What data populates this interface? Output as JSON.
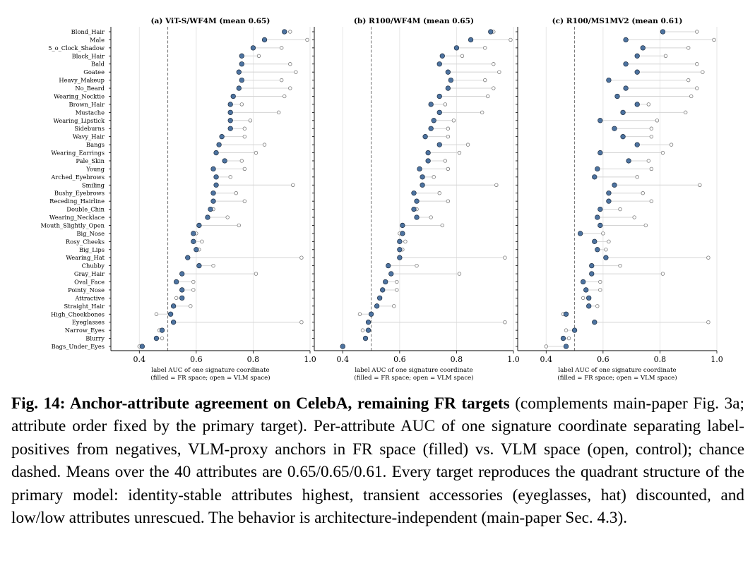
{
  "chart_data": [
    {
      "type": "scatter",
      "title": "(a) ViT-S/WF4M (mean 0.65)",
      "xlabel": "label AUC of one signature coordinate",
      "xlabel_note": "(filled = FR space; open = VLM space)",
      "xlim": [
        0.3,
        1.0
      ],
      "xticks": [
        "0.4",
        "0.6",
        "0.8",
        "1.0"
      ],
      "chance": 0.5,
      "grid": true,
      "fr": [
        0.91,
        0.84,
        0.8,
        0.76,
        0.76,
        0.75,
        0.76,
        0.75,
        0.73,
        0.72,
        0.72,
        0.72,
        0.72,
        0.69,
        0.68,
        0.67,
        0.7,
        0.66,
        0.67,
        0.67,
        0.66,
        0.66,
        0.65,
        0.64,
        0.61,
        0.59,
        0.59,
        0.6,
        0.57,
        0.61,
        0.55,
        0.53,
        0.55,
        0.55,
        0.52,
        0.51,
        0.52,
        0.48,
        0.46,
        0.41
      ],
      "vlm": [
        0.93,
        0.99,
        0.9,
        0.82,
        0.93,
        0.95,
        0.9,
        0.93,
        0.91,
        0.76,
        0.89,
        0.79,
        0.77,
        0.77,
        0.84,
        0.81,
        0.76,
        0.77,
        0.72,
        0.94,
        0.74,
        0.77,
        0.66,
        0.71,
        0.75,
        0.6,
        0.62,
        0.61,
        0.97,
        0.66,
        0.81,
        0.59,
        0.59,
        0.53,
        0.58,
        0.46,
        0.97,
        0.47,
        0.48,
        0.4
      ]
    },
    {
      "type": "scatter",
      "title": "(b) R100/WF4M (mean 0.65)",
      "xlabel": "label AUC of one signature coordinate",
      "xlabel_note": "(filled = FR space; open = VLM space)",
      "xlim": [
        0.3,
        1.0
      ],
      "xticks": [
        "0.4",
        "0.6",
        "0.8",
        "1.0"
      ],
      "chance": 0.5,
      "grid": true,
      "fr": [
        0.92,
        0.85,
        0.8,
        0.75,
        0.74,
        0.77,
        0.78,
        0.77,
        0.74,
        0.71,
        0.74,
        0.72,
        0.71,
        0.69,
        0.74,
        0.7,
        0.7,
        0.67,
        0.68,
        0.68,
        0.65,
        0.66,
        0.65,
        0.66,
        0.61,
        0.61,
        0.6,
        0.6,
        0.6,
        0.56,
        0.57,
        0.55,
        0.54,
        0.53,
        0.52,
        0.5,
        0.49,
        0.49,
        0.48,
        0.4
      ],
      "vlm": [
        0.93,
        0.99,
        0.9,
        0.82,
        0.93,
        0.95,
        0.9,
        0.93,
        0.91,
        0.76,
        0.89,
        0.79,
        0.77,
        0.77,
        0.84,
        0.81,
        0.76,
        0.77,
        0.72,
        0.94,
        0.74,
        0.77,
        0.66,
        0.71,
        0.75,
        0.6,
        0.62,
        0.61,
        0.97,
        0.66,
        0.81,
        0.59,
        0.59,
        0.53,
        0.58,
        0.46,
        0.97,
        0.47,
        0.48,
        0.4
      ]
    },
    {
      "type": "scatter",
      "title": "(c) R100/MS1MV2 (mean 0.61)",
      "xlabel": "label AUC of one signature coordinate",
      "xlabel_note": "(filled = FR space; open = VLM space)",
      "xlim": [
        0.3,
        1.0
      ],
      "xticks": [
        "0.4",
        "0.6",
        "0.8",
        "1.0"
      ],
      "chance": 0.5,
      "grid": true,
      "fr": [
        0.81,
        0.68,
        0.74,
        0.72,
        0.68,
        0.72,
        0.62,
        0.68,
        0.65,
        0.72,
        0.67,
        0.59,
        0.64,
        0.67,
        0.72,
        0.59,
        0.69,
        0.58,
        0.57,
        0.64,
        0.62,
        0.62,
        0.59,
        0.58,
        0.59,
        0.52,
        0.57,
        0.58,
        0.61,
        0.56,
        0.56,
        0.53,
        0.54,
        0.55,
        0.55,
        0.47,
        0.57,
        0.5,
        0.46,
        0.47
      ],
      "vlm": [
        0.93,
        0.99,
        0.9,
        0.82,
        0.93,
        0.95,
        0.9,
        0.93,
        0.91,
        0.76,
        0.89,
        0.79,
        0.77,
        0.77,
        0.84,
        0.81,
        0.76,
        0.77,
        0.72,
        0.94,
        0.74,
        0.77,
        0.66,
        0.71,
        0.75,
        0.6,
        0.62,
        0.61,
        0.97,
        0.66,
        0.81,
        0.59,
        0.59,
        0.53,
        0.58,
        0.46,
        0.97,
        0.47,
        0.48,
        0.4
      ]
    }
  ],
  "attributes": [
    "Blond_Hair",
    "Male",
    "5_o_Clock_Shadow",
    "Black_Hair",
    "Bald",
    "Goatee",
    "Heavy_Makeup",
    "No_Beard",
    "Wearing_Necktie",
    "Brown_Hair",
    "Mustache",
    "Wearing_Lipstick",
    "Sideburns",
    "Wavy_Hair",
    "Bangs",
    "Wearing_Earrings",
    "Pale_Skin",
    "Young",
    "Arched_Eyebrows",
    "Smiling",
    "Bushy_Eyebrows",
    "Receding_Hairline",
    "Double_Chin",
    "Wearing_Necklace",
    "Mouth_Slightly_Open",
    "Big_Nose",
    "Rosy_Cheeks",
    "Big_Lips",
    "Wearing_Hat",
    "Chubby",
    "Gray_Hair",
    "Oval_Face",
    "Pointy_Nose",
    "Attractive",
    "Straight_Hair",
    "High_Cheekbones",
    "Eyeglasses",
    "Narrow_Eyes",
    "Blurry",
    "Bags_Under_Eyes"
  ],
  "colors": {
    "fr_fill": "#4d73a0",
    "fr_stroke": "#1c2c40",
    "vlm_stroke": "#7a7a7a",
    "connector": "#d4d4d4",
    "grid": "#e6e6e6",
    "chance": "#707070"
  },
  "caption": {
    "label": "Fig. 14: Anchor-attribute agreement on CelebA, remaining FR targets",
    "text": " (complements main-paper Fig. 3a; attribute order fixed by the primary target). Per-attribute AUC of one signature coordinate separating label-positives from negatives, VLM-proxy anchors in FR space (filled) vs. VLM space (open, control); chance dashed. Means over the 40 attributes are 0.65/0.65/0.61. Every target reproduces the quadrant structure of the primary model: identity-stable attributes highest, transient accessories (eyeglasses, hat) discounted, and low/low attributes unrescued. The behavior is architecture-independent (main-paper Sec. 4.3)."
  }
}
